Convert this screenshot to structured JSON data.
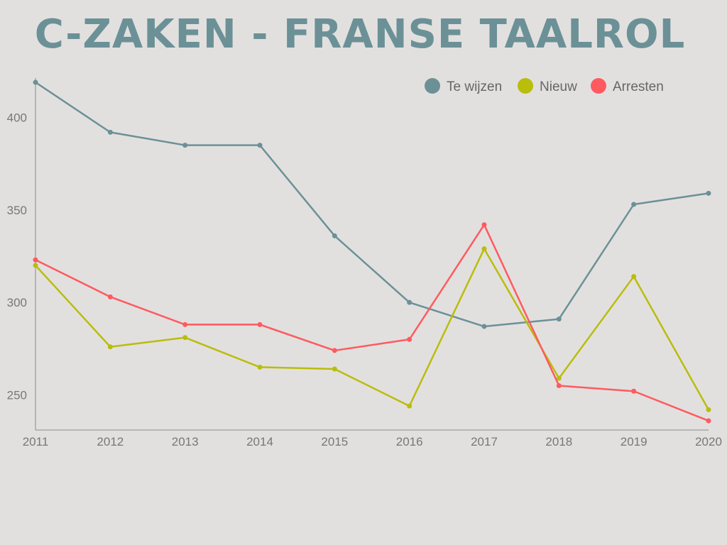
{
  "title": "C-ZAKEN - FRANSE TAALROL",
  "chart_data": {
    "type": "line",
    "title": "C-ZAKEN - FRANSE TAALROL",
    "x": [
      "2011",
      "2012",
      "2013",
      "2014",
      "2015",
      "2016",
      "2017",
      "2018",
      "2019",
      "2020"
    ],
    "ylim": [
      231,
      419
    ],
    "yticks": [
      250,
      300,
      350,
      400
    ],
    "xlabel": "",
    "ylabel": "",
    "grid": false,
    "legend_position": "top-right",
    "series": [
      {
        "name": "Te wijzen",
        "color": "#6b9197",
        "values": [
          419,
          392,
          385,
          385,
          336,
          300,
          287,
          291,
          353,
          359
        ]
      },
      {
        "name": "Nieuw",
        "color": "#b9bd0c",
        "values": [
          320,
          276,
          281,
          265,
          264,
          244,
          329,
          259,
          314,
          242
        ]
      },
      {
        "name": "Arresten",
        "color": "#ff5a5f",
        "values": [
          323,
          303,
          288,
          288,
          274,
          280,
          342,
          255,
          252,
          236
        ]
      }
    ]
  }
}
